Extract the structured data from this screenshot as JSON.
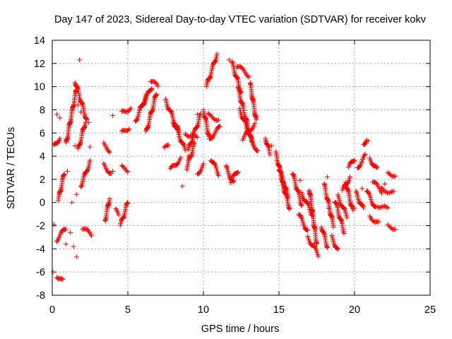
{
  "chart_data": {
    "type": "scatter",
    "title": "Day 147 of 2023, Sidereal Day-to-day VTEC variation (SDTVAR) for receiver kokv",
    "xlabel": "GPS time / hours",
    "ylabel": "SDTVAR / TECUs",
    "xlim": [
      0,
      25
    ],
    "ylim": [
      -8,
      14
    ],
    "xticks": [
      0,
      5,
      10,
      15,
      20,
      25
    ],
    "yticks": [
      -8,
      -6,
      -4,
      -2,
      0,
      2,
      4,
      6,
      8,
      10,
      12,
      14
    ],
    "grid": true,
    "marker": "plus",
    "color": "#ff0000",
    "segments": [
      {
        "x": [
          0.1,
          0.5
        ],
        "y": [
          4.8,
          5.6
        ]
      },
      {
        "x": [
          0.3,
          0.9
        ],
        "y": [
          -3.2,
          -2.2
        ]
      },
      {
        "x": [
          0.3,
          0.7
        ],
        "y": [
          -6.3,
          -6.8
        ]
      },
      {
        "x": [
          0.4,
          0.8
        ],
        "y": [
          0.2,
          2.6
        ]
      },
      {
        "x": [
          0.9,
          1.6
        ],
        "y": [
          5.0,
          9.8
        ]
      },
      {
        "x": [
          1.5,
          2.3
        ],
        "y": [
          10.5,
          7.0
        ]
      },
      {
        "x": [
          1.7,
          2.2
        ],
        "y": [
          4.5,
          7.0
        ]
      },
      {
        "x": [
          1.9,
          2.5
        ],
        "y": [
          1.5,
          3.5
        ]
      },
      {
        "x": [
          2.0,
          2.6
        ],
        "y": [
          -2.2,
          -2.8
        ]
      },
      {
        "x": [
          3.4,
          3.8
        ],
        "y": [
          5.0,
          4.5
        ]
      },
      {
        "x": [
          3.4,
          3.9
        ],
        "y": [
          3.2,
          2.5
        ]
      },
      {
        "x": [
          3.5,
          3.8
        ],
        "y": [
          -1.5,
          0.4
        ]
      },
      {
        "x": [
          4.2,
          4.4
        ],
        "y": [
          -0.7,
          -1.0
        ]
      },
      {
        "x": [
          4.5,
          5.0
        ],
        "y": [
          -2.0,
          0.0
        ]
      },
      {
        "x": [
          4.6,
          5.0
        ],
        "y": [
          3.0,
          2.8
        ]
      },
      {
        "x": [
          4.6,
          5.1
        ],
        "y": [
          6.0,
          6.5
        ]
      },
      {
        "x": [
          4.6,
          5.2
        ],
        "y": [
          7.7,
          8.2
        ]
      },
      {
        "x": [
          5.5,
          6.2
        ],
        "y": [
          7.0,
          9.2
        ]
      },
      {
        "x": [
          5.8,
          6.6
        ],
        "y": [
          8.0,
          10.0
        ]
      },
      {
        "x": [
          6.2,
          6.9
        ],
        "y": [
          6.0,
          9.5
        ]
      },
      {
        "x": [
          6.5,
          7.0
        ],
        "y": [
          10.5,
          10.0
        ]
      },
      {
        "x": [
          7.4,
          7.7
        ],
        "y": [
          4.6,
          4.9
        ]
      },
      {
        "x": [
          7.5,
          8.4
        ],
        "y": [
          8.8,
          6.0
        ]
      },
      {
        "x": [
          7.8,
          8.5
        ],
        "y": [
          2.8,
          3.8
        ]
      },
      {
        "x": [
          8.0,
          8.8
        ],
        "y": [
          7.0,
          4.5
        ]
      },
      {
        "x": [
          8.8,
          9.6
        ],
        "y": [
          6.0,
          5.5
        ]
      },
      {
        "x": [
          8.9,
          9.4
        ],
        "y": [
          3.0,
          5.0
        ]
      },
      {
        "x": [
          9.0,
          9.8
        ],
        "y": [
          4.5,
          7.5
        ]
      },
      {
        "x": [
          9.6,
          10.0
        ],
        "y": [
          2.5,
          3.2
        ]
      },
      {
        "x": [
          10.0,
          10.4
        ],
        "y": [
          8.0,
          5.5
        ]
      },
      {
        "x": [
          10.2,
          10.9
        ],
        "y": [
          10.0,
          12.8
        ]
      },
      {
        "x": [
          10.3,
          11.0
        ],
        "y": [
          7.5,
          7.2
        ]
      },
      {
        "x": [
          10.4,
          11.1
        ],
        "y": [
          5.5,
          6.5
        ]
      },
      {
        "x": [
          10.5,
          11.0
        ],
        "y": [
          3.8,
          2.5
        ]
      },
      {
        "x": [
          11.5,
          12.0
        ],
        "y": [
          3.0,
          1.6
        ]
      },
      {
        "x": [
          11.8,
          12.3
        ],
        "y": [
          1.8,
          2.8
        ]
      },
      {
        "x": [
          11.9,
          12.5
        ],
        "y": [
          12.0,
          9.5
        ]
      },
      {
        "x": [
          12.2,
          13.0
        ],
        "y": [
          11.8,
          11.0
        ]
      },
      {
        "x": [
          12.3,
          13.2
        ],
        "y": [
          9.8,
          5.2
        ]
      },
      {
        "x": [
          12.4,
          13.3
        ],
        "y": [
          8.0,
          5.0
        ]
      },
      {
        "x": [
          12.6,
          13.4
        ],
        "y": [
          5.5,
          6.8
        ]
      },
      {
        "x": [
          13.1,
          13.5
        ],
        "y": [
          10.2,
          7.0
        ]
      },
      {
        "x": [
          13.2,
          13.6
        ],
        "y": [
          5.2,
          4.5
        ]
      },
      {
        "x": [
          14.1,
          14.4
        ],
        "y": [
          5.6,
          4.2
        ]
      },
      {
        "x": [
          14.8,
          15.4
        ],
        "y": [
          4.2,
          1.0
        ]
      },
      {
        "x": [
          15.0,
          15.6
        ],
        "y": [
          3.0,
          0.5
        ]
      },
      {
        "x": [
          15.2,
          15.7
        ],
        "y": [
          1.8,
          -0.5
        ]
      },
      {
        "x": [
          15.9,
          16.5
        ],
        "y": [
          2.5,
          -0.2
        ]
      },
      {
        "x": [
          16.3,
          16.9
        ],
        "y": [
          -1.0,
          -2.5
        ]
      },
      {
        "x": [
          16.5,
          17.2
        ],
        "y": [
          0.8,
          -1.0
        ]
      },
      {
        "x": [
          16.9,
          17.6
        ],
        "y": [
          -3.0,
          -4.5
        ]
      },
      {
        "x": [
          17.0,
          17.5
        ],
        "y": [
          1.2,
          -3.6
        ]
      },
      {
        "x": [
          17.8,
          18.2
        ],
        "y": [
          -2.0,
          -3.8
        ]
      },
      {
        "x": [
          18.0,
          18.6
        ],
        "y": [
          1.5,
          -2.0
        ]
      },
      {
        "x": [
          18.5,
          18.9
        ],
        "y": [
          -3.0,
          -4.2
        ]
      },
      {
        "x": [
          18.7,
          19.3
        ],
        "y": [
          0.2,
          -2.5
        ]
      },
      {
        "x": [
          18.9,
          19.5
        ],
        "y": [
          0.5,
          -1.2
        ]
      },
      {
        "x": [
          19.2,
          19.7
        ],
        "y": [
          1.0,
          2.2
        ]
      },
      {
        "x": [
          19.4,
          19.9
        ],
        "y": [
          1.8,
          -0.8
        ]
      },
      {
        "x": [
          19.6,
          20.0
        ],
        "y": [
          3.0,
          3.8
        ]
      },
      {
        "x": [
          20.1,
          20.6
        ],
        "y": [
          0.8,
          -0.6
        ]
      },
      {
        "x": [
          20.2,
          20.7
        ],
        "y": [
          3.0,
          4.0
        ]
      },
      {
        "x": [
          20.6,
          20.8
        ],
        "y": [
          5.0,
          5.5
        ]
      },
      {
        "x": [
          20.8,
          21.4
        ],
        "y": [
          1.0,
          -0.5
        ]
      },
      {
        "x": [
          21.0,
          21.5
        ],
        "y": [
          3.8,
          2.8
        ]
      },
      {
        "x": [
          21.0,
          21.6
        ],
        "y": [
          -1.2,
          -1.8
        ]
      },
      {
        "x": [
          21.2,
          21.8
        ],
        "y": [
          1.8,
          1.0
        ]
      },
      {
        "x": [
          21.5,
          22.2
        ],
        "y": [
          -0.2,
          -0.6
        ]
      },
      {
        "x": [
          21.8,
          22.6
        ],
        "y": [
          1.2,
          0.8
        ]
      },
      {
        "x": [
          22.2,
          22.7
        ],
        "y": [
          2.5,
          2.4
        ]
      },
      {
        "x": [
          22.2,
          22.7
        ],
        "y": [
          -2.0,
          -2.2
        ]
      }
    ],
    "points": [
      {
        "x": 0.05,
        "y": -6.0
      },
      {
        "x": 0.1,
        "y": -1.9
      },
      {
        "x": 0.3,
        "y": 7.6
      },
      {
        "x": 0.5,
        "y": 7.3
      },
      {
        "x": 0.9,
        "y": -3.6
      },
      {
        "x": 1.0,
        "y": 2.7
      },
      {
        "x": 1.2,
        "y": -2.6
      },
      {
        "x": 1.3,
        "y": 0.0
      },
      {
        "x": 1.4,
        "y": -3.8
      },
      {
        "x": 1.5,
        "y": 4.9
      },
      {
        "x": 1.6,
        "y": -4.7
      },
      {
        "x": 1.6,
        "y": 0.7
      },
      {
        "x": 1.7,
        "y": 8.4
      },
      {
        "x": 1.8,
        "y": 12.3
      },
      {
        "x": 1.9,
        "y": 7.8
      },
      {
        "x": 2.4,
        "y": 6.9
      },
      {
        "x": 2.5,
        "y": 4.8
      },
      {
        "x": 4.0,
        "y": 2.7
      },
      {
        "x": 4.0,
        "y": 7.5
      },
      {
        "x": 9.0,
        "y": 4.0
      },
      {
        "x": 8.6,
        "y": 1.4
      },
      {
        "x": 9.3,
        "y": 6.0
      },
      {
        "x": 9.6,
        "y": 7.6
      },
      {
        "x": 10.7,
        "y": 3.4
      },
      {
        "x": 11.7,
        "y": 12.3
      },
      {
        "x": 14.5,
        "y": 4.9
      },
      {
        "x": 16.4,
        "y": 1.9
      },
      {
        "x": 18.2,
        "y": 2.2
      },
      {
        "x": 18.3,
        "y": -0.5
      },
      {
        "x": 20.0,
        "y": -0.5
      },
      {
        "x": 20.5,
        "y": 1.2
      },
      {
        "x": 20.9,
        "y": 5.3
      },
      {
        "x": 22.0,
        "y": 1.6
      }
    ]
  }
}
